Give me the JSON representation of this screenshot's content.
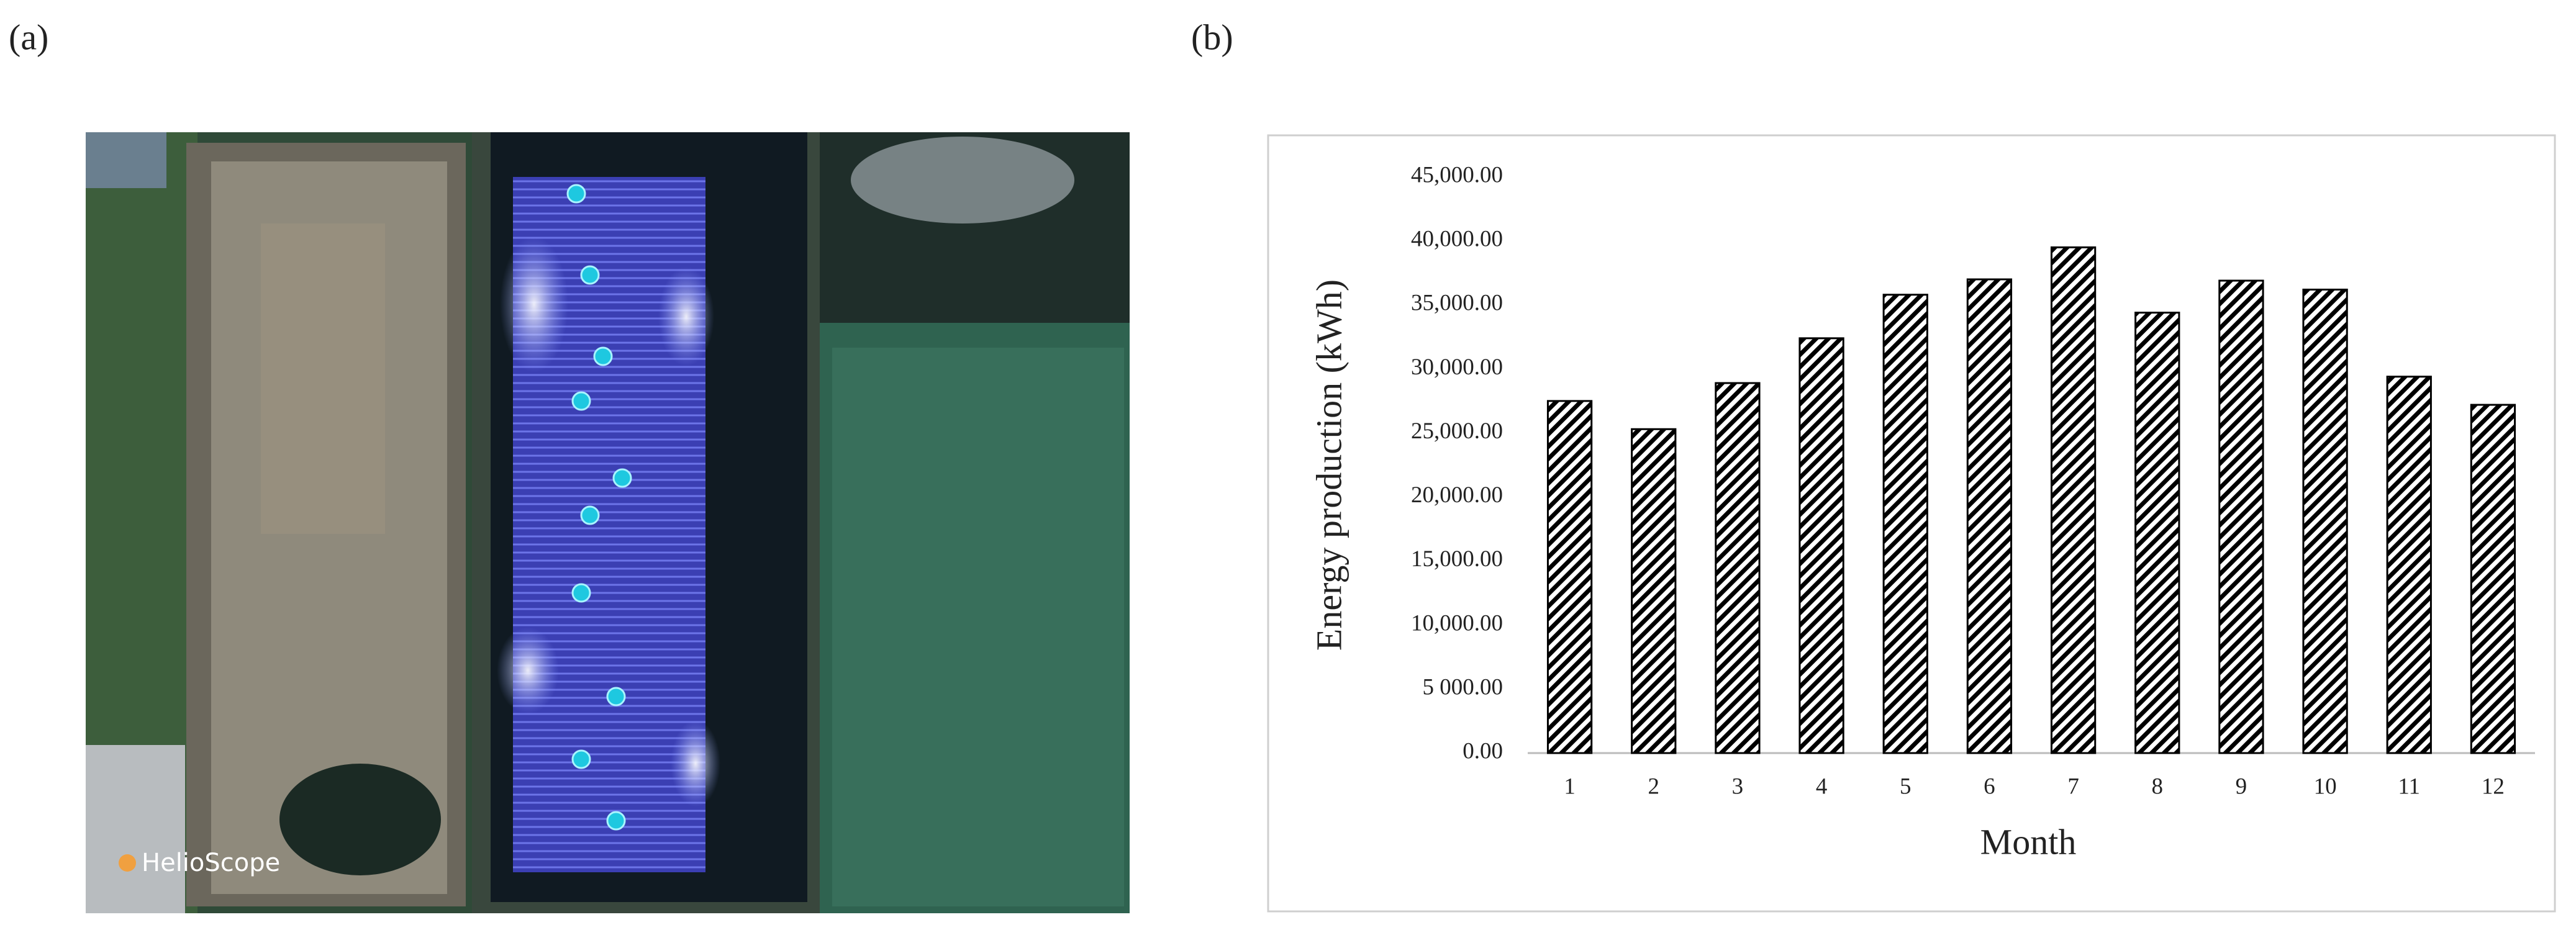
{
  "panel_labels": [
    "(a)",
    "(b)"
  ],
  "map_watermark": "HelioScope",
  "chart_data": {
    "type": "bar",
    "xlabel": "Month",
    "ylabel": "Energy production (kWh)",
    "categories": [
      "1",
      "2",
      "3",
      "4",
      "5",
      "6",
      "7",
      "8",
      "9",
      "10",
      "11",
      "12"
    ],
    "values": [
      27500,
      25300,
      28900,
      32400,
      35800,
      37000,
      39500,
      34400,
      36900,
      36200,
      29400,
      27200
    ],
    "color": "#000000",
    "hatch": "diagonal",
    "ylim": [
      0,
      45000
    ],
    "yticks": [
      {
        "value": 0,
        "label": "0.00"
      },
      {
        "value": 5000,
        "label": "5 000.00"
      },
      {
        "value": 10000,
        "label": "10,000.00"
      },
      {
        "value": 15000,
        "label": "15,000.00"
      },
      {
        "value": 20000,
        "label": "20,000.00"
      },
      {
        "value": 25000,
        "label": "25,000.00"
      },
      {
        "value": 30000,
        "label": "30,000.00"
      },
      {
        "value": 35000,
        "label": "35,000.00"
      },
      {
        "value": 40000,
        "label": "40,000.00"
      },
      {
        "value": 45000,
        "label": "45,000.00"
      }
    ],
    "grid": false
  }
}
